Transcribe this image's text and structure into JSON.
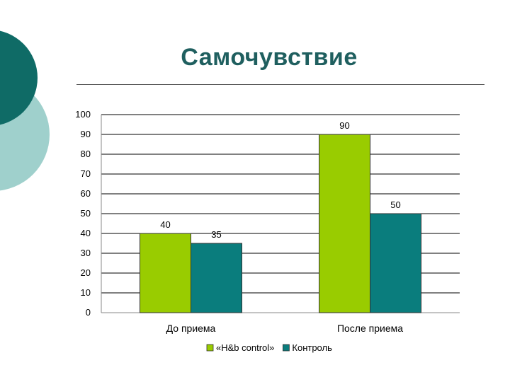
{
  "page": {
    "title": "Самочувствие"
  },
  "colors": {
    "decor_dark": "#0f6b66",
    "decor_light": "#9fd0cc",
    "title": "#1f5f5f"
  },
  "chart_data": {
    "type": "bar",
    "categories": [
      "До приема",
      "После приема"
    ],
    "series": [
      {
        "name": "«H&b control»",
        "values": [
          40,
          90
        ],
        "color": "#99cc00"
      },
      {
        "name": "Контроль",
        "values": [
          35,
          50
        ],
        "color": "#0a7d7d"
      }
    ],
    "ylim": [
      0,
      100
    ],
    "yticks": [
      0,
      10,
      20,
      30,
      40,
      50,
      60,
      70,
      80,
      90,
      100
    ],
    "grid": true,
    "legend": "bottom",
    "data_labels": true
  }
}
